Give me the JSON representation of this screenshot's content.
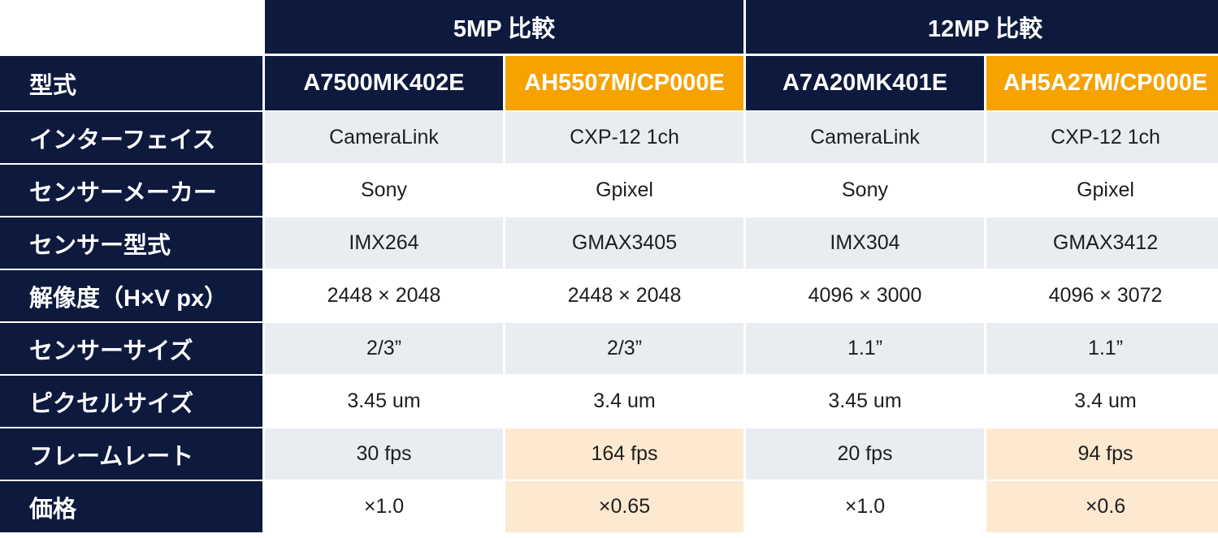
{
  "header": {
    "group_5mp": "5MP 比較",
    "group_12mp": "12MP 比較"
  },
  "columns": [
    {
      "model": "A7500MK402E",
      "highlight": false
    },
    {
      "model": "AH5507M/CP000E",
      "highlight": true
    },
    {
      "model": "A7A20MK401E",
      "highlight": false
    },
    {
      "model": "AH5A27M/CP000E",
      "highlight": true
    }
  ],
  "rows": [
    {
      "label": "型式"
    },
    {
      "label": "インターフェイス",
      "values": [
        "CameraLink",
        "CXP-12 1ch",
        "CameraLink",
        "CXP-12 1ch"
      ]
    },
    {
      "label": "センサーメーカー",
      "values": [
        "Sony",
        "Gpixel",
        "Sony",
        "Gpixel"
      ]
    },
    {
      "label": "センサー型式",
      "values": [
        "IMX264",
        "GMAX3405",
        "IMX304",
        "GMAX3412"
      ]
    },
    {
      "label": "解像度（H×V px）",
      "values": [
        "2448 × 2048",
        "2448 × 2048",
        "4096 × 3000",
        "4096 × 3072"
      ]
    },
    {
      "label": "センサーサイズ",
      "values": [
        "2/3”",
        "2/3”",
        "1.1”",
        "1.1”"
      ]
    },
    {
      "label": "ピクセルサイズ",
      "values": [
        "3.45 um",
        "3.4 um",
        "3.45 um",
        "3.4 um"
      ]
    },
    {
      "label": "フレームレート",
      "values": [
        "30 fps",
        "164 fps",
        "20 fps",
        "94 fps"
      ]
    },
    {
      "label": "価格",
      "values": [
        "×1.0",
        "×0.65",
        "×1.0",
        "×0.6"
      ]
    }
  ],
  "colors": {
    "navy": "#0d1a3e",
    "orange": "#f6a200",
    "row_gray": "#e9ecf1",
    "highlight_cell": "#fde9cf"
  }
}
